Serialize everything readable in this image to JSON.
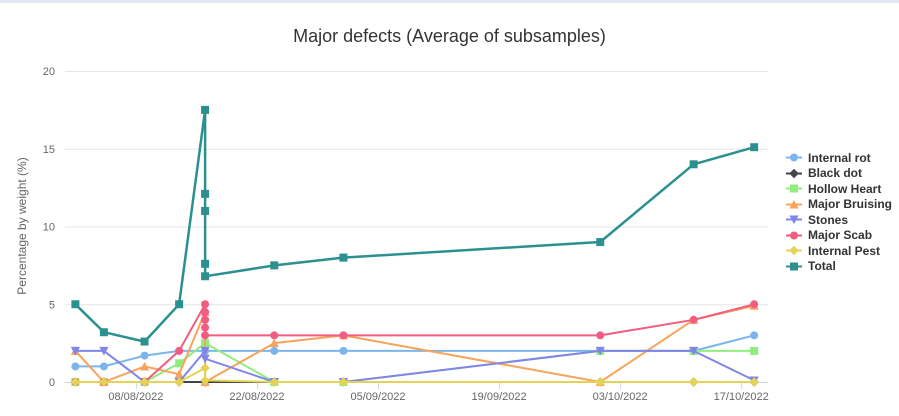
{
  "page": {
    "background_color": "#ffffff",
    "top_band_color": "#e1eaf2"
  },
  "chart_data": {
    "type": "line",
    "title": "Major defects (Average of subsamples)",
    "xlabel": "",
    "ylabel": "Percentage by weight (%)",
    "ylim": [
      0,
      20
    ],
    "yticks": [
      0,
      5,
      10,
      15,
      20
    ],
    "grid": "horizontal",
    "legend_position": "right",
    "x_axis_unit": "days relative to 08/08/2022",
    "xlim_days": [
      -8.2,
      73.1
    ],
    "xtick_days": [
      0,
      14,
      28,
      42,
      56,
      70
    ],
    "xtick_labels": [
      "08/08/2022",
      "22/08/2022",
      "05/09/2022",
      "19/09/2022",
      "03/10/2022",
      "17/10/2022"
    ],
    "estimated_sample_dates": [
      "01/08/2022",
      "04/08/2022",
      "09/08/2022",
      "13/08/2022",
      "16/08/2022 (5 subsamples)",
      "24/08/2022",
      "01/09/2022",
      "01/10/2022",
      "11/10/2022",
      "18/10/2022"
    ],
    "axis_line_color": "#ccd6eb",
    "grid_color": "#e6e6e6",
    "series": [
      {
        "name": "Internal rot",
        "color": "#7cb5ec",
        "marker": "circle",
        "points": [
          [
            -7,
            1
          ],
          [
            -3.7,
            1
          ],
          [
            1,
            1.7
          ],
          [
            5,
            2
          ],
          [
            8,
            2
          ],
          [
            16,
            2
          ],
          [
            24,
            2
          ],
          [
            53.7,
            2
          ],
          [
            64.5,
            2
          ],
          [
            71.5,
            3
          ]
        ]
      },
      {
        "name": "Black dot",
        "color": "#434348",
        "marker": "diamond",
        "points": [
          [
            -7,
            0
          ],
          [
            -3.7,
            0
          ],
          [
            1,
            0
          ],
          [
            5,
            0
          ],
          [
            8,
            0
          ],
          [
            16,
            0
          ],
          [
            24,
            0
          ],
          [
            53.7,
            0
          ],
          [
            64.5,
            0
          ],
          [
            71.5,
            0
          ]
        ]
      },
      {
        "name": "Hollow Heart",
        "color": "#90ed7d",
        "marker": "square",
        "points": [
          [
            -7,
            0
          ],
          [
            -3.7,
            0
          ],
          [
            1,
            0
          ],
          [
            5,
            1.2
          ],
          [
            8,
            2.5
          ],
          [
            16,
            0
          ],
          [
            24,
            0
          ],
          [
            53.7,
            2
          ],
          [
            64.5,
            2
          ],
          [
            71.5,
            2
          ]
        ]
      },
      {
        "name": "Major Bruising",
        "color": "#f7a35c",
        "marker": "triangle",
        "points": [
          [
            -7,
            2
          ],
          [
            -3.7,
            0
          ],
          [
            1,
            1
          ],
          [
            5,
            0.5
          ],
          [
            8,
            4.5
          ],
          [
            8,
            0
          ],
          [
            16,
            2.5
          ],
          [
            24,
            3
          ],
          [
            53.7,
            0
          ],
          [
            64.5,
            4
          ],
          [
            71.5,
            4.9
          ]
        ]
      },
      {
        "name": "Stones",
        "color": "#8085e9",
        "marker": "triangle-down",
        "points": [
          [
            -7,
            2
          ],
          [
            -3.7,
            2
          ],
          [
            1,
            0
          ],
          [
            5,
            0
          ],
          [
            8,
            2
          ],
          [
            8,
            1.5
          ],
          [
            16,
            0
          ],
          [
            24,
            0
          ],
          [
            53.7,
            2
          ],
          [
            64.5,
            2
          ],
          [
            71.5,
            0.1
          ]
        ]
      },
      {
        "name": "Major Scab",
        "color": "#f15c80",
        "marker": "circle",
        "points": [
          [
            -7,
            0
          ],
          [
            -3.7,
            0
          ],
          [
            1,
            0
          ],
          [
            5,
            2
          ],
          [
            8,
            5
          ],
          [
            8,
            4.5
          ],
          [
            8,
            4
          ],
          [
            8,
            3.5
          ],
          [
            8,
            3
          ],
          [
            16,
            3
          ],
          [
            24,
            3
          ],
          [
            53.7,
            3
          ],
          [
            64.5,
            4
          ],
          [
            71.5,
            5
          ]
        ]
      },
      {
        "name": "Internal Pest",
        "color": "#e4d354",
        "marker": "diamond",
        "points": [
          [
            -7,
            0
          ],
          [
            -3.7,
            0
          ],
          [
            1,
            0
          ],
          [
            5,
            0
          ],
          [
            8,
            0.9
          ],
          [
            8,
            0.1
          ],
          [
            16,
            0
          ],
          [
            24,
            0
          ],
          [
            53.7,
            0
          ],
          [
            64.5,
            0
          ],
          [
            71.5,
            0
          ]
        ]
      },
      {
        "name": "Total",
        "color": "#2b908f",
        "marker": "square",
        "line_width": 2.5,
        "points": [
          [
            -7,
            5
          ],
          [
            -3.7,
            3.2
          ],
          [
            1,
            2.6
          ],
          [
            5,
            5
          ],
          [
            8,
            17.5
          ],
          [
            8,
            12.1
          ],
          [
            8,
            11
          ],
          [
            8,
            7.6
          ],
          [
            8,
            6.8
          ],
          [
            16,
            7.5
          ],
          [
            24,
            8
          ],
          [
            53.7,
            9
          ],
          [
            64.5,
            14
          ],
          [
            71.5,
            15.1
          ]
        ]
      }
    ]
  }
}
